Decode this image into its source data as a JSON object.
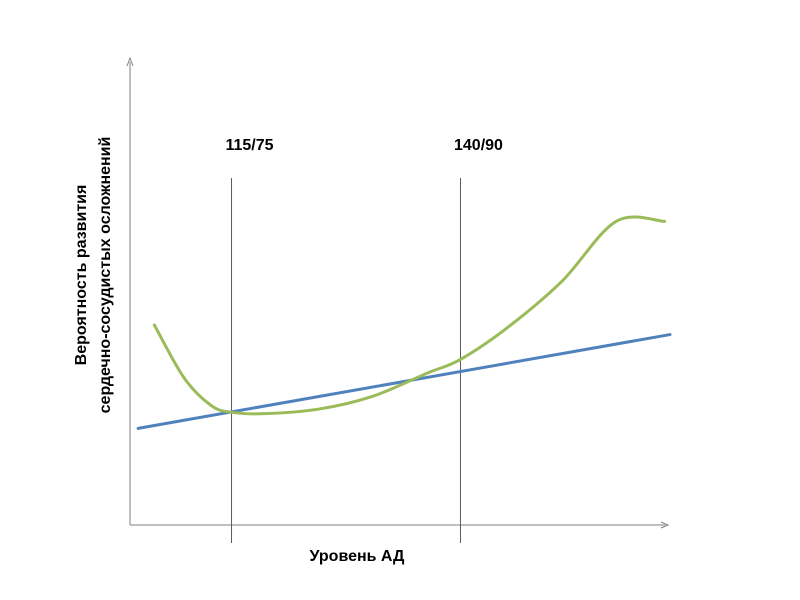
{
  "chart_data": {
    "type": "line",
    "title": "",
    "xlabel": "Уровень АД",
    "ylabel": [
      "Вероятность развития",
      "сердечно-сосудистых осложнений"
    ],
    "grid": false,
    "legend": "none",
    "ylim": [
      0,
      10
    ],
    "xlim": [
      0,
      10
    ],
    "reference_lines": [
      {
        "label": "115/75",
        "x": 1.88
      },
      {
        "label": "140/90",
        "x": 6.12
      }
    ],
    "series": [
      {
        "color": "#4f81bd",
        "x": [
          0.15,
          10.0
        ],
        "y": [
          2.1,
          4.14
        ]
      },
      {
        "color": "#9bbb59",
        "x": [
          0.45,
          1.0,
          1.5,
          1.88,
          2.5,
          3.5,
          4.5,
          5.5,
          6.12,
          7.0,
          8.0,
          9.0,
          9.9
        ],
        "y": [
          4.35,
          3.2,
          2.6,
          2.45,
          2.42,
          2.52,
          2.8,
          3.3,
          3.6,
          4.3,
          5.3,
          6.6,
          6.6
        ]
      }
    ]
  }
}
